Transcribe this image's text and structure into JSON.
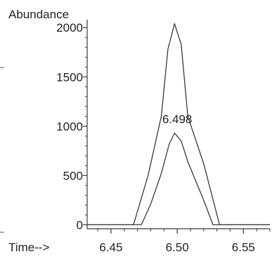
{
  "chart_data": {
    "type": "line",
    "ylabel": "Abundance",
    "xlabel": "Time-->",
    "xlim": [
      6.432,
      6.57
    ],
    "ylim": [
      -40,
      2080
    ],
    "x_ticks": [
      6.45,
      6.5,
      6.55
    ],
    "x_tick_labels": [
      "6.45",
      "6.50",
      "6.55"
    ],
    "y_ticks": [
      0,
      500,
      1000,
      1500,
      2000
    ],
    "y_tick_labels": [
      "0",
      "500",
      "1000",
      "1500",
      "2000"
    ],
    "series": [
      {
        "x": [
          6.432,
          6.467,
          6.478,
          6.488,
          6.493,
          6.498,
          6.503,
          6.508,
          6.52,
          6.532,
          6.57
        ],
        "values": [
          0,
          0,
          500,
          1100,
          1780,
          2040,
          1830,
          1100,
          620,
          0,
          0
        ]
      },
      {
        "x": [
          6.432,
          6.473,
          6.48,
          6.488,
          6.494,
          6.498,
          6.503,
          6.508,
          6.52,
          6.527,
          6.57
        ],
        "values": [
          0,
          0,
          210,
          520,
          820,
          930,
          850,
          640,
          250,
          0,
          0
        ]
      }
    ],
    "annotations": [
      {
        "text": "6.498",
        "x": 6.5,
        "y": 1030
      }
    ],
    "grid": false,
    "line_color": "#3a3a3a"
  }
}
